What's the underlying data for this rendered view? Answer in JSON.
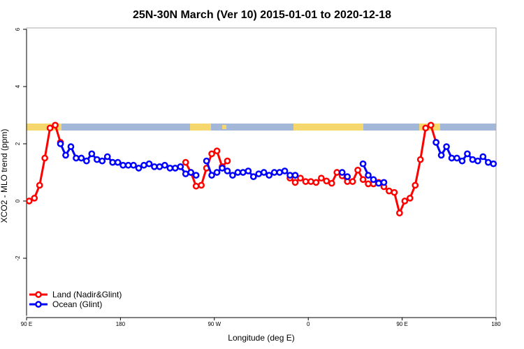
{
  "chart_data": {
    "type": "line",
    "title": "25N-30N March (Ver 10)   2015-01-01 to 2020-12-18",
    "x_label": "Longitude (deg E)",
    "y_label": "XCO2 - MLO trend (ppm)",
    "xlim": [
      90,
      540
    ],
    "xticks": [
      {
        "value": 90,
        "label": "90 E"
      },
      180,
      {
        "value": 270,
        "label": "90 W"
      },
      {
        "value": 360,
        "label": "0"
      },
      {
        "value": 450,
        "label": "90 E"
      },
      {
        "value": 540,
        "label": "180"
      }
    ],
    "ylim": [
      -4,
      6
    ],
    "yticks": [
      6,
      4,
      2,
      0,
      -2
    ],
    "legend": "bottom-left",
    "series": [
      {
        "name": "Land (Nadir&Glint)",
        "color": "#ff0000",
        "x": [
          92.5,
          97.5,
          102.5,
          107.5,
          112.5,
          117.5,
          122.5,
          127.5,
          242.5,
          247.5,
          252.5,
          257.5,
          262.5,
          267.5,
          272.5,
          277.5,
          282.5,
          287.5,
          342.5,
          347.5,
          352.5,
          357.5,
          362.5,
          367.5,
          372.5,
          377.5,
          382.5,
          387.5,
          392.5,
          397.5,
          402.5,
          407.5,
          412.5,
          417.5,
          422.5,
          427.5,
          432.5,
          437.5,
          442.5,
          447.5,
          452.5,
          457.5,
          462.5,
          467.5,
          472.5,
          477.5,
          482.5
        ],
        "values": [
          0,
          0.1,
          0.55,
          1.5,
          2.55,
          2.65,
          2.05,
          null,
          1.35,
          1.0,
          0.52,
          0.55,
          1.15,
          1.65,
          1.75,
          1.2,
          1.4,
          null,
          0.8,
          0.65,
          0.8,
          0.68,
          0.68,
          0.65,
          0.8,
          0.7,
          0.62,
          1.0,
          0.88,
          0.68,
          0.68,
          1.08,
          0.75,
          0.6,
          0.6,
          0.65,
          0.5,
          0.35,
          0.3,
          -0.42,
          0,
          0.1,
          0.55,
          1.45,
          2.55,
          2.65,
          2.05
        ]
      },
      {
        "name": "Ocean (Glint)",
        "color": "#0000ff",
        "x": [
          122.5,
          127.5,
          132.5,
          137.5,
          142.5,
          147.5,
          152.5,
          157.5,
          162.5,
          167.5,
          172.5,
          177.5,
          182.5,
          187.5,
          192.5,
          197.5,
          202.5,
          207.5,
          212.5,
          217.5,
          222.5,
          227.5,
          232.5,
          237.5,
          242.5,
          247.5,
          252.5,
          257.5,
          262.5,
          267.5,
          272.5,
          277.5,
          282.5,
          287.5,
          292.5,
          297.5,
          302.5,
          307.5,
          312.5,
          317.5,
          322.5,
          327.5,
          332.5,
          337.5,
          342.5,
          347.5,
          352.5,
          392.5,
          397.5,
          402.5,
          412.5,
          417.5,
          422.5,
          427.5,
          432.5,
          437.5,
          482.5,
          487.5,
          492.5,
          497.5,
          502.5,
          507.5,
          512.5,
          517.5,
          522.5,
          527.5,
          532.5,
          537.5
        ],
        "values": [
          2.0,
          1.6,
          1.9,
          1.5,
          1.5,
          1.4,
          1.65,
          1.45,
          1.4,
          1.55,
          1.35,
          1.35,
          1.25,
          1.25,
          1.25,
          1.15,
          1.25,
          1.3,
          1.2,
          1.2,
          1.25,
          1.15,
          1.15,
          1.2,
          0.95,
          1.0,
          0.9,
          null,
          1.4,
          0.9,
          1.0,
          1.15,
          1.05,
          0.9,
          1.0,
          1.0,
          1.05,
          0.85,
          0.95,
          1.0,
          0.9,
          1.0,
          1.0,
          1.05,
          0.9,
          0.9,
          null,
          1.0,
          0.85,
          null,
          1.3,
          0.9,
          0.75,
          0.62,
          0.65,
          null,
          2.05,
          1.6,
          1.9,
          1.5,
          1.5,
          1.4,
          1.65,
          1.45,
          1.4,
          1.55,
          1.35,
          1.3
        ]
      }
    ]
  }
}
